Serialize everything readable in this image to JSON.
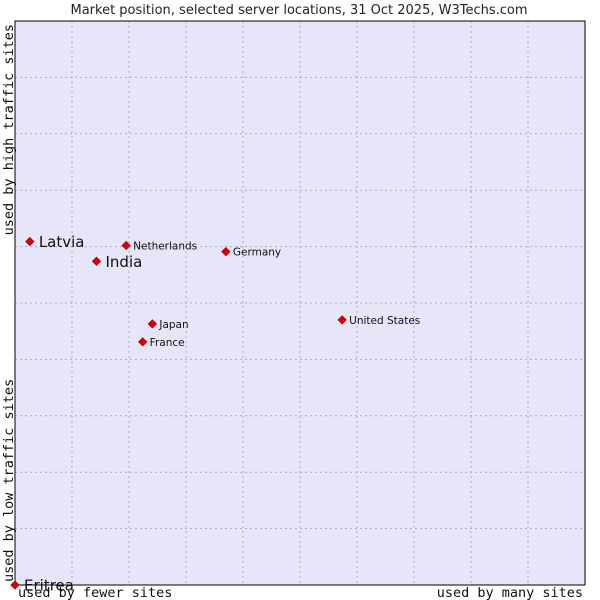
{
  "chart_data": {
    "type": "scatter",
    "title": "Market position, selected server locations, 31 Oct 2025, W3Techs.com",
    "xlabel_left": "used by fewer sites",
    "xlabel_right": "used by many sites",
    "ylabel_bottom": "used by low traffic sites",
    "ylabel_top": "used by high traffic sites",
    "xlim": [
      0,
      100
    ],
    "ylim": [
      0,
      100
    ],
    "grid": true,
    "colors": {
      "plot_bg": "#e6e6f8",
      "grid": "#aaaacc",
      "marker": "#dd0000",
      "frame": "#000000"
    },
    "points": [
      {
        "label": "Latvia",
        "x": 2.6,
        "y": 60.9,
        "emphasis": true
      },
      {
        "label": "India",
        "x": 14.3,
        "y": 57.4,
        "emphasis": true
      },
      {
        "label": "Netherlands",
        "x": 19.5,
        "y": 60.2,
        "emphasis": false
      },
      {
        "label": "Germany",
        "x": 37.0,
        "y": 59.1,
        "emphasis": false
      },
      {
        "label": "United States",
        "x": 57.4,
        "y": 47.0,
        "emphasis": false
      },
      {
        "label": "Japan",
        "x": 24.1,
        "y": 46.3,
        "emphasis": false
      },
      {
        "label": "France",
        "x": 22.4,
        "y": 43.1,
        "emphasis": false
      },
      {
        "label": "Eritrea",
        "x": 0.0,
        "y": 0.0,
        "emphasis": true
      }
    ]
  }
}
